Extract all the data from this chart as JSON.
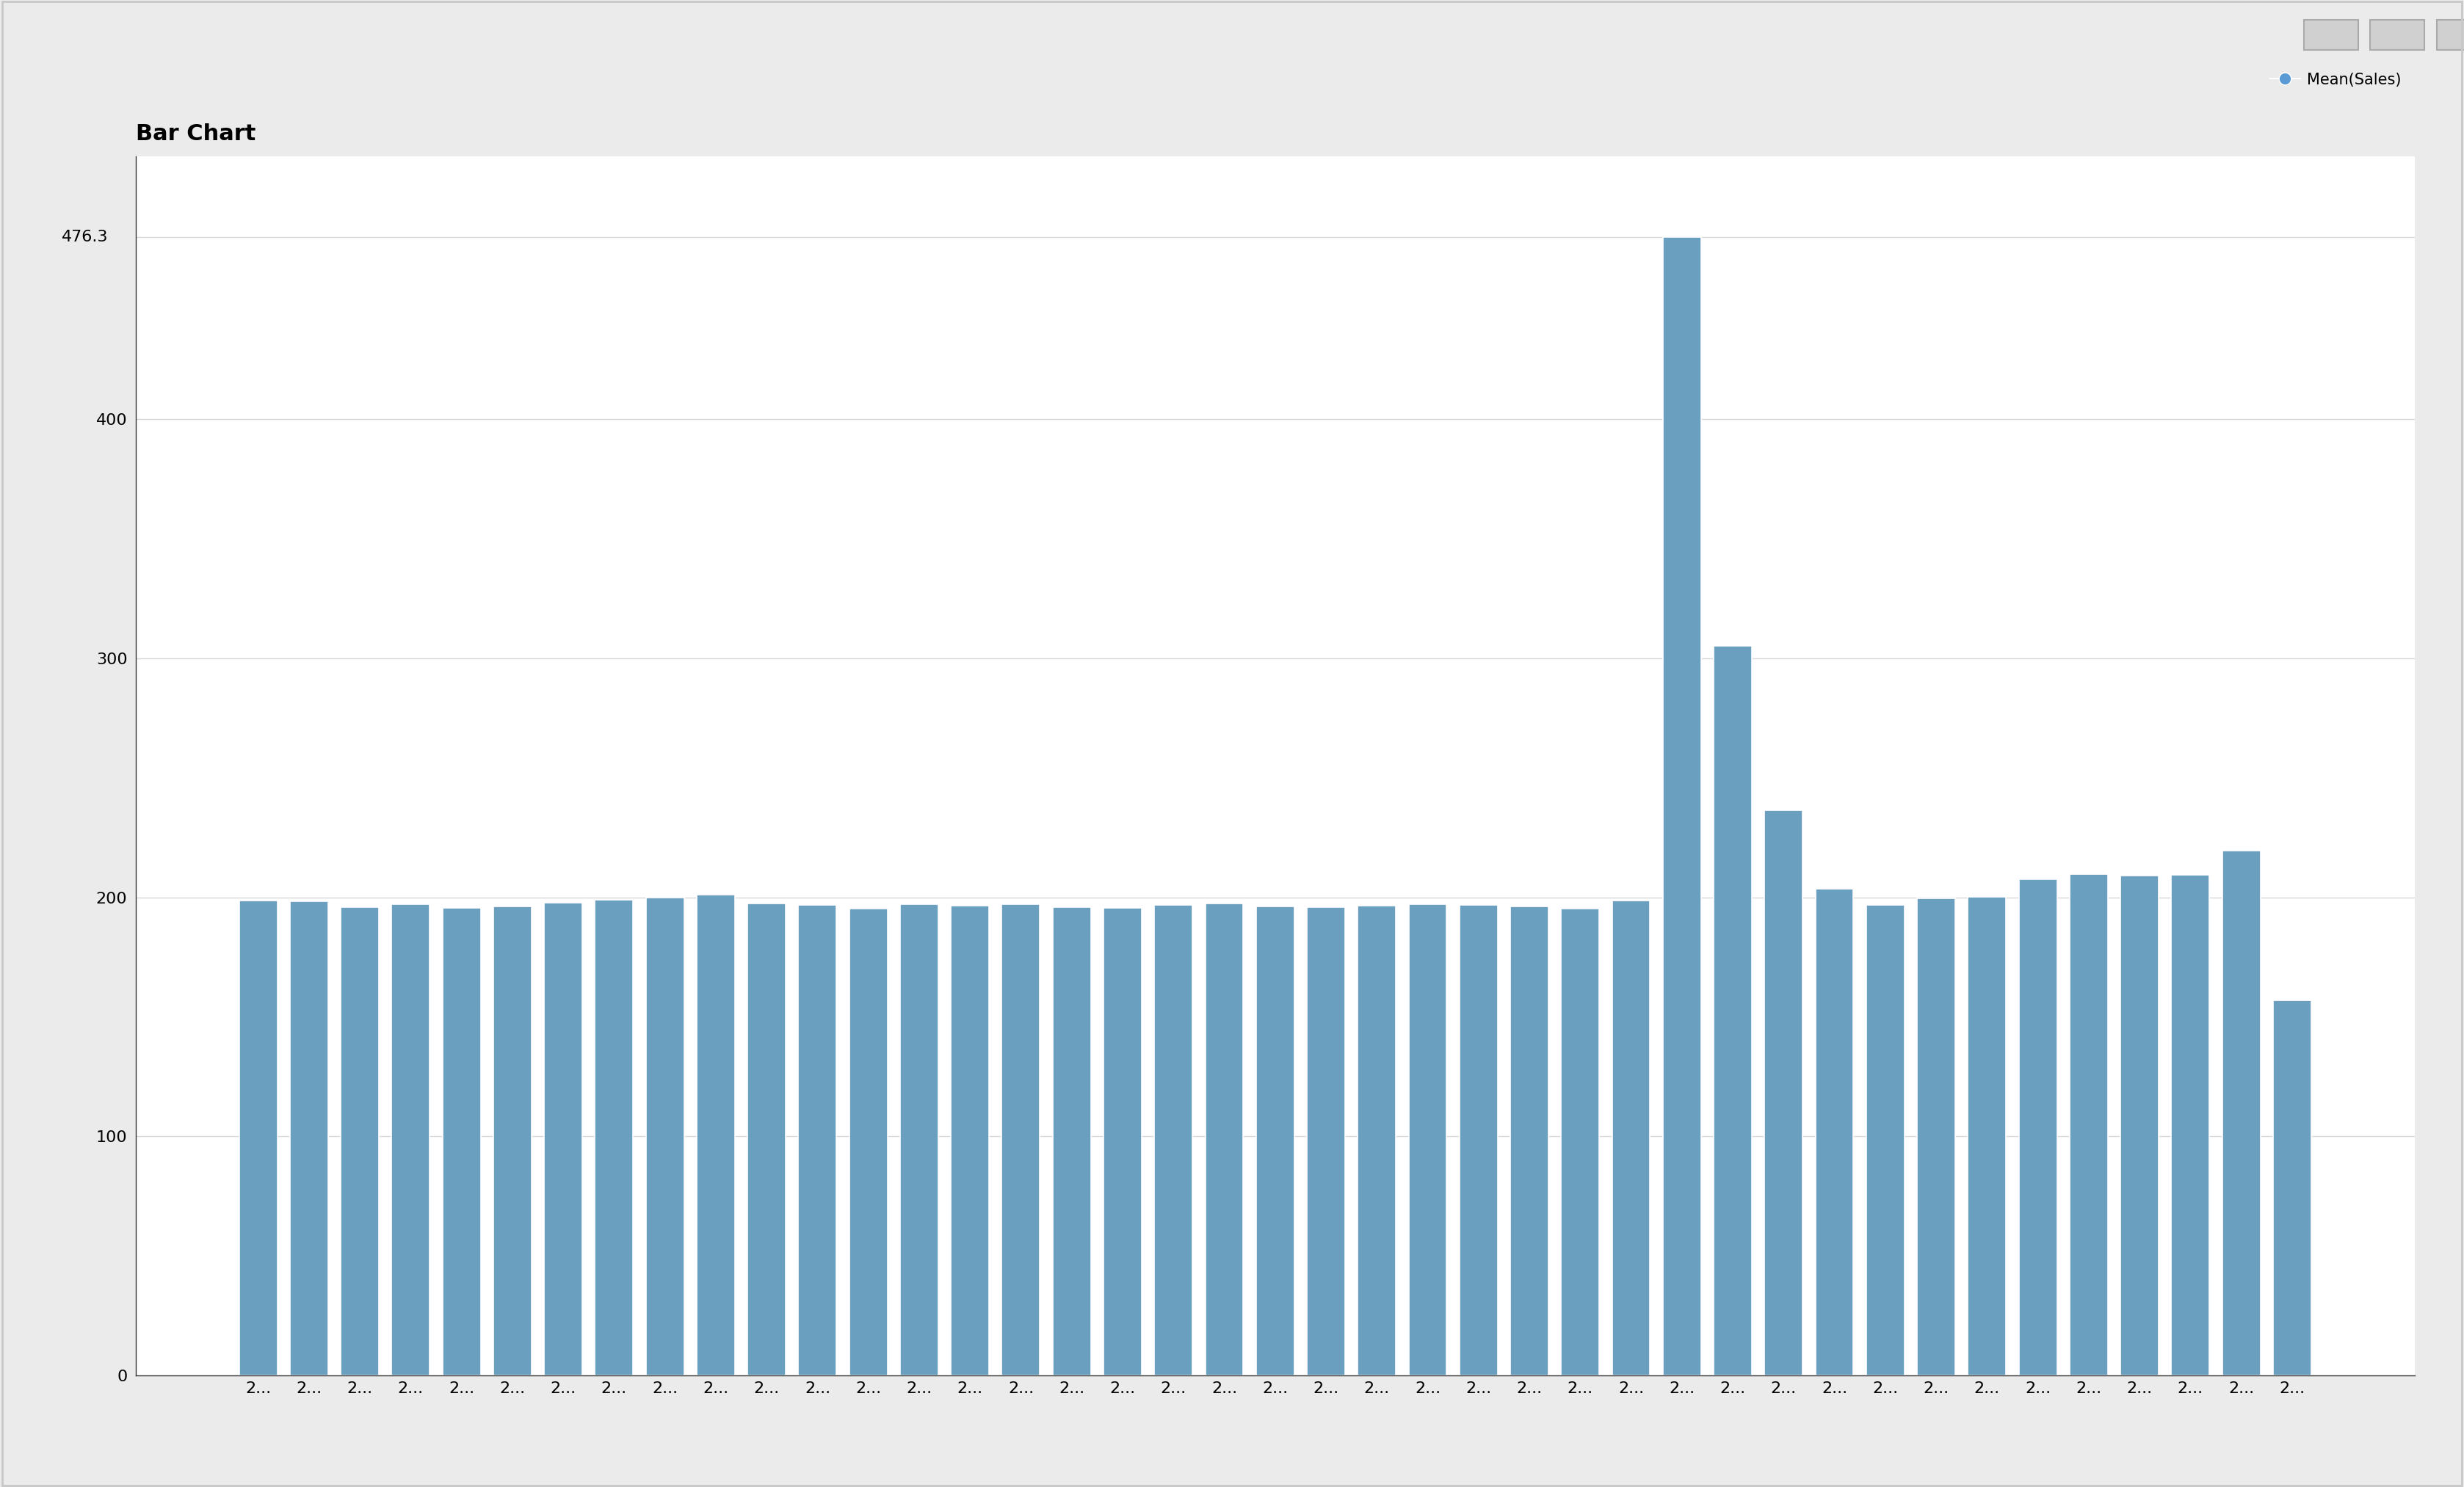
{
  "title": "Bar Chart",
  "bar_color": "#6a9fc0",
  "legend_label": "Mean(Sales)",
  "legend_color": "#5b9bd5",
  "outer_bg_color": "#ebebeb",
  "plot_bg_color": "#ffffff",
  "inner_bg_color": "#ffffff",
  "ylim": [
    0,
    510
  ],
  "yticks": [
    0,
    100,
    200,
    300,
    400
  ],
  "ytick_extra": 476.3,
  "values": [
    198.5,
    198.2,
    195.8,
    197.1,
    195.5,
    196.2,
    197.8,
    198.9,
    199.8,
    201.0,
    197.5,
    196.8,
    195.2,
    197.0,
    196.5,
    197.2,
    196.0,
    195.5,
    196.8,
    197.5,
    196.2,
    195.8,
    196.5,
    197.0,
    196.8,
    196.3,
    195.2,
    198.5,
    476.3,
    305.2,
    236.5,
    203.5,
    196.8,
    199.5,
    200.2,
    207.5,
    209.8,
    209.2,
    209.5,
    219.5,
    157.0
  ],
  "xlabels": [
    "2...",
    "2...",
    "2...",
    "2...",
    "2...",
    "2...",
    "2...",
    "2...",
    "2...",
    "2...",
    "2...",
    "2...",
    "2...",
    "2...",
    "2...",
    "2...",
    "2...",
    "2...",
    "2...",
    "2...",
    "2...",
    "2...",
    "2...",
    "2...",
    "2...",
    "2...",
    "2...",
    "2...",
    "2...",
    "2...",
    "2...",
    "2...",
    "2...",
    "2...",
    "2...",
    "2...",
    "2...",
    "2...",
    "2...",
    "2...",
    "2..."
  ],
  "title_fontsize": 22,
  "tick_fontsize": 16,
  "legend_fontsize": 15,
  "bar_width": 0.75,
  "grid_color": "#d8d8d8",
  "grid_linestyle": "-",
  "grid_linewidth": 1.0,
  "outer_border_color": "#c8c8c8",
  "spine_color": "#333333"
}
